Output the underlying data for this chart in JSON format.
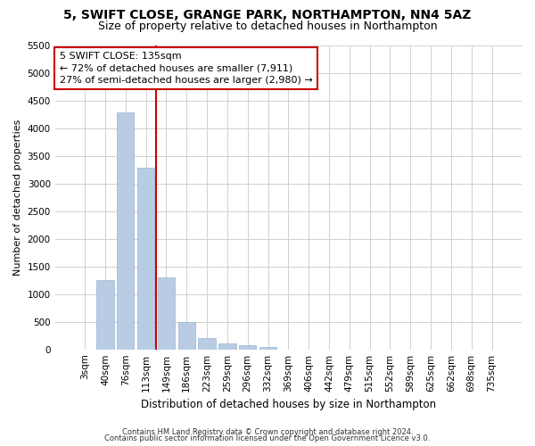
{
  "title1": "5, SWIFT CLOSE, GRANGE PARK, NORTHAMPTON, NN4 5AZ",
  "title2": "Size of property relative to detached houses in Northampton",
  "xlabel": "Distribution of detached houses by size in Northampton",
  "ylabel": "Number of detached properties",
  "categories": [
    "3sqm",
    "40sqm",
    "76sqm",
    "113sqm",
    "149sqm",
    "186sqm",
    "223sqm",
    "259sqm",
    "296sqm",
    "332sqm",
    "369sqm",
    "406sqm",
    "442sqm",
    "479sqm",
    "515sqm",
    "552sqm",
    "589sqm",
    "625sqm",
    "662sqm",
    "698sqm",
    "735sqm"
  ],
  "values": [
    0,
    1250,
    4300,
    3300,
    1300,
    500,
    200,
    100,
    75,
    50,
    0,
    0,
    0,
    0,
    0,
    0,
    0,
    0,
    0,
    0,
    0
  ],
  "bar_color": "#b8cce4",
  "bar_edgecolor": "#9ab3d0",
  "red_line_x": 3.5,
  "annotation_line1": "5 SWIFT CLOSE: 135sqm",
  "annotation_line2": "← 72% of detached houses are smaller (7,911)",
  "annotation_line3": "27% of semi-detached houses are larger (2,980) →",
  "annotation_box_color": "#ffffff",
  "annotation_box_edgecolor": "#cc0000",
  "ylim": [
    0,
    5500
  ],
  "yticks": [
    0,
    500,
    1000,
    1500,
    2000,
    2500,
    3000,
    3500,
    4000,
    4500,
    5000,
    5500
  ],
  "red_line_color": "#cc0000",
  "footer1": "Contains HM Land Registry data © Crown copyright and database right 2024.",
  "footer2": "Contains public sector information licensed under the Open Government Licence v3.0.",
  "bg_color": "#ffffff",
  "grid_color": "#d0d0d0",
  "title1_fontsize": 10,
  "title2_fontsize": 9,
  "xlabel_fontsize": 8.5,
  "ylabel_fontsize": 8,
  "tick_fontsize": 7.5,
  "footer_fontsize": 6,
  "annotation_fontsize": 8
}
